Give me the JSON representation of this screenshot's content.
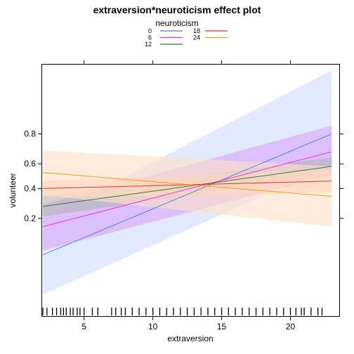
{
  "chart_data": {
    "type": "line",
    "title": "extraversion*neuroticism effect plot",
    "xlabel": "extraversion",
    "ylabel": "volunteer",
    "xlim": [
      1.95,
      23.55
    ],
    "y_scale": "logit",
    "ylim": [
      0.01,
      0.975
    ],
    "x_ticks": [
      5,
      10,
      15,
      20
    ],
    "y_ticks": [
      0.2,
      0.4,
      0.6,
      0.8
    ],
    "grid": false,
    "legend": {
      "title": "neuroticism",
      "position": "top-center"
    },
    "x": [
      2,
      23
    ],
    "series": [
      {
        "name": "0",
        "color": "#4f85d6",
        "band_color": "#cfdffb",
        "values": [
          0.07,
          0.8
        ],
        "lower": [
          0.02,
          0.59
        ],
        "upper": [
          0.2,
          0.97
        ]
      },
      {
        "name": "6",
        "color": "#ef2fe8",
        "band_color": "#d7a7fb",
        "values": [
          0.16,
          0.69
        ],
        "lower": [
          0.08,
          0.51
        ],
        "upper": [
          0.28,
          0.84
        ]
      },
      {
        "name": "12",
        "color": "#2f7c2f",
        "band_color": "#b3b3b3",
        "values": [
          0.27,
          0.58
        ],
        "lower": [
          0.21,
          0.51
        ],
        "upper": [
          0.34,
          0.65
        ]
      },
      {
        "name": "18",
        "color": "#e8302a",
        "band_color": "#ffc9b2",
        "values": [
          0.4,
          0.46
        ],
        "lower": [
          0.33,
          0.37
        ],
        "upper": [
          0.46,
          0.55
        ]
      },
      {
        "name": "24",
        "color": "#f29d19",
        "band_color": "#ffe0c7",
        "values": [
          0.53,
          0.34
        ],
        "lower": [
          0.35,
          0.16
        ],
        "upper": [
          0.7,
          0.58
        ]
      }
    ],
    "rug": [
      2,
      2.3,
      2.7,
      3,
      3.3,
      3.5,
      3.7,
      4,
      4.2,
      4.5,
      4.7,
      5,
      5.6,
      6,
      7,
      7.3,
      7.7,
      8,
      8.5,
      9,
      9.5,
      10,
      10.5,
      11,
      11.5,
      12,
      12.5,
      13,
      13.5,
      14,
      14.5,
      15,
      15.5,
      16,
      16.5,
      17,
      17.5,
      18,
      18.5,
      19,
      19.5,
      20,
      20.4,
      20.8,
      21,
      21.5,
      22,
      22.3
    ]
  }
}
